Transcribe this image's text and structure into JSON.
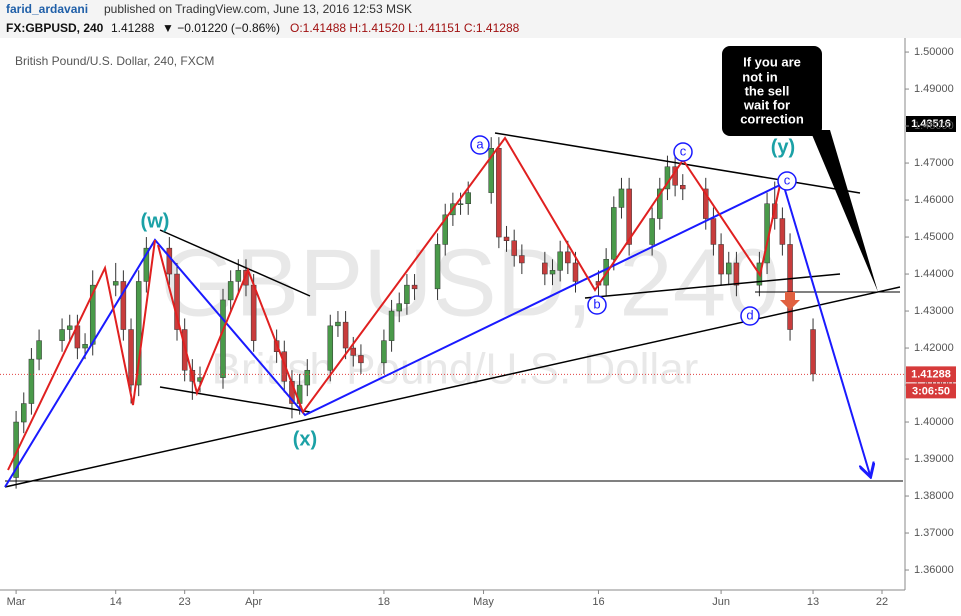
{
  "header": {
    "author": "farid_ardavani",
    "published": "published on TradingView.com, June 13, 2016 12:53 MSK",
    "symbol": "FX:GBPUSD, 240",
    "last": "1.41288",
    "change": "▼ −0.01220 (−0.86%)",
    "ohlc": "O:1.41488 H:1.41520 L:1.41151 C:1.41288"
  },
  "watermark": {
    "symbol": "GBPUSD, 240",
    "name": "British Pound/U.S. Dollar"
  },
  "tags": {
    "marked": "1.43516",
    "countdown": "3:06:50"
  },
  "annotations": {
    "w": "(w)",
    "x": "(x)",
    "y": "(y)",
    "a": "a",
    "b": "b",
    "c1": "c",
    "c2": "c",
    "d": "d",
    "callout": [
      "If you are",
      "not in",
      "the sell",
      "wait for",
      "correction"
    ]
  },
  "chart_data": {
    "type": "candlestick",
    "title": "British Pound/U.S. Dollar, 240, FXCM",
    "last_price": 1.41288,
    "x": [
      0,
      1,
      2,
      3,
      6,
      7,
      8,
      9,
      10,
      13,
      14,
      15,
      16,
      17,
      20,
      21,
      22,
      23,
      24,
      27,
      28,
      29,
      30,
      31,
      34,
      35,
      36,
      37,
      38,
      41,
      42,
      43,
      44,
      45,
      48,
      49,
      50,
      51,
      52,
      55,
      56,
      57,
      58,
      59,
      62,
      63,
      64,
      65,
      66,
      69,
      70,
      71,
      72,
      73,
      76,
      77,
      78,
      79,
      80,
      83,
      84,
      85,
      86,
      87,
      90,
      91,
      92,
      93,
      94,
      97,
      98,
      99,
      100,
      101,
      104
    ],
    "open": [
      1.385,
      1.4,
      1.405,
      1.417,
      1.422,
      1.425,
      1.426,
      1.42,
      1.421,
      1.437,
      1.438,
      1.425,
      1.41,
      1.438,
      1.447,
      1.44,
      1.425,
      1.414,
      1.411,
      1.412,
      1.433,
      1.438,
      1.441,
      1.437,
      1.422,
      1.419,
      1.411,
      1.405,
      1.41,
      1.414,
      1.426,
      1.427,
      1.42,
      1.418,
      1.416,
      1.422,
      1.43,
      1.432,
      1.437,
      1.436,
      1.448,
      1.456,
      1.459,
      1.459,
      1.462,
      1.474,
      1.45,
      1.449,
      1.445,
      1.443,
      1.44,
      1.441,
      1.446,
      1.443,
      1.438,
      1.437,
      1.444,
      1.458,
      1.463,
      1.448,
      1.455,
      1.463,
      1.469,
      1.464,
      1.463,
      1.455,
      1.448,
      1.44,
      1.443,
      1.437,
      1.443,
      1.459,
      1.455,
      1.448,
      1.425
    ],
    "high": [
      1.403,
      1.408,
      1.42,
      1.425,
      1.428,
      1.429,
      1.429,
      1.424,
      1.441,
      1.443,
      1.441,
      1.428,
      1.441,
      1.45,
      1.45,
      1.443,
      1.428,
      1.417,
      1.415,
      1.436,
      1.441,
      1.444,
      1.444,
      1.44,
      1.425,
      1.422,
      1.414,
      1.413,
      1.417,
      1.429,
      1.43,
      1.43,
      1.423,
      1.421,
      1.425,
      1.433,
      1.435,
      1.44,
      1.44,
      1.451,
      1.459,
      1.462,
      1.462,
      1.465,
      1.477,
      1.477,
      1.453,
      1.452,
      1.448,
      1.446,
      1.444,
      1.449,
      1.449,
      1.446,
      1.441,
      1.447,
      1.461,
      1.466,
      1.466,
      1.458,
      1.466,
      1.472,
      1.472,
      1.467,
      1.466,
      1.458,
      1.451,
      1.446,
      1.446,
      1.446,
      1.462,
      1.465,
      1.458,
      1.451,
      1.428
    ],
    "low": [
      1.382,
      1.397,
      1.402,
      1.414,
      1.419,
      1.422,
      1.417,
      1.417,
      1.418,
      1.434,
      1.422,
      1.405,
      1.407,
      1.435,
      1.437,
      1.422,
      1.411,
      1.406,
      1.408,
      1.409,
      1.43,
      1.435,
      1.434,
      1.419,
      1.416,
      1.408,
      1.401,
      1.402,
      1.407,
      1.411,
      1.423,
      1.417,
      1.415,
      1.413,
      1.413,
      1.419,
      1.427,
      1.429,
      1.433,
      1.433,
      1.445,
      1.453,
      1.456,
      1.456,
      1.459,
      1.447,
      1.446,
      1.442,
      1.44,
      1.437,
      1.437,
      1.438,
      1.44,
      1.435,
      1.434,
      1.434,
      1.441,
      1.455,
      1.445,
      1.445,
      1.452,
      1.46,
      1.461,
      1.46,
      1.452,
      1.445,
      1.437,
      1.437,
      1.434,
      1.434,
      1.44,
      1.452,
      1.445,
      1.422,
      1.411
    ],
    "close": [
      1.4,
      1.405,
      1.417,
      1.422,
      1.425,
      1.426,
      1.42,
      1.421,
      1.437,
      1.438,
      1.425,
      1.41,
      1.438,
      1.447,
      1.44,
      1.425,
      1.414,
      1.411,
      1.412,
      1.433,
      1.438,
      1.441,
      1.437,
      1.422,
      1.419,
      1.411,
      1.405,
      1.41,
      1.414,
      1.426,
      1.427,
      1.42,
      1.418,
      1.416,
      1.422,
      1.43,
      1.432,
      1.437,
      1.436,
      1.448,
      1.456,
      1.459,
      1.459,
      1.462,
      1.474,
      1.45,
      1.449,
      1.445,
      1.443,
      1.44,
      1.441,
      1.446,
      1.443,
      1.438,
      1.437,
      1.444,
      1.458,
      1.463,
      1.448,
      1.455,
      1.463,
      1.469,
      1.464,
      1.463,
      1.455,
      1.448,
      1.44,
      1.443,
      1.437,
      1.443,
      1.459,
      1.455,
      1.448,
      1.425,
      1.413
    ],
    "up_color": "#4a9a4a",
    "down_color": "#c83c3c",
    "xlim": [
      -2.1,
      116
    ],
    "xticks": [
      {
        "value": 0,
        "label": "Mar"
      },
      {
        "value": 13,
        "label": "14"
      },
      {
        "value": 22,
        "label": "23"
      },
      {
        "value": 31,
        "label": "Apr"
      },
      {
        "value": 48,
        "label": "18"
      },
      {
        "value": 61,
        "label": "May"
      },
      {
        "value": 76,
        "label": "16"
      },
      {
        "value": 92,
        "label": "Jun"
      },
      {
        "value": 104,
        "label": "13"
      },
      {
        "value": 113,
        "label": "22"
      }
    ],
    "ylim": [
      1.3546,
      1.5038
    ],
    "yticks": [
      {
        "value": 1.36,
        "label": "1.36000"
      },
      {
        "value": 1.37,
        "label": "1.37000"
      },
      {
        "value": 1.38,
        "label": "1.38000"
      },
      {
        "value": 1.39,
        "label": "1.39000"
      },
      {
        "value": 1.4,
        "label": "1.40000"
      },
      {
        "value": 1.41,
        "label": "1.41000"
      },
      {
        "value": 1.42,
        "label": "1.42000"
      },
      {
        "value": 1.43,
        "label": "1.43000"
      },
      {
        "value": 1.44,
        "label": "1.44000"
      },
      {
        "value": 1.45,
        "label": "1.45000"
      },
      {
        "value": 1.46,
        "label": "1.46000"
      },
      {
        "value": 1.47,
        "label": "1.47000"
      },
      {
        "value": 1.48,
        "label": "1.48000"
      },
      {
        "value": 1.49,
        "label": "1.49000"
      },
      {
        "value": 1.5,
        "label": "1.50000"
      }
    ]
  }
}
